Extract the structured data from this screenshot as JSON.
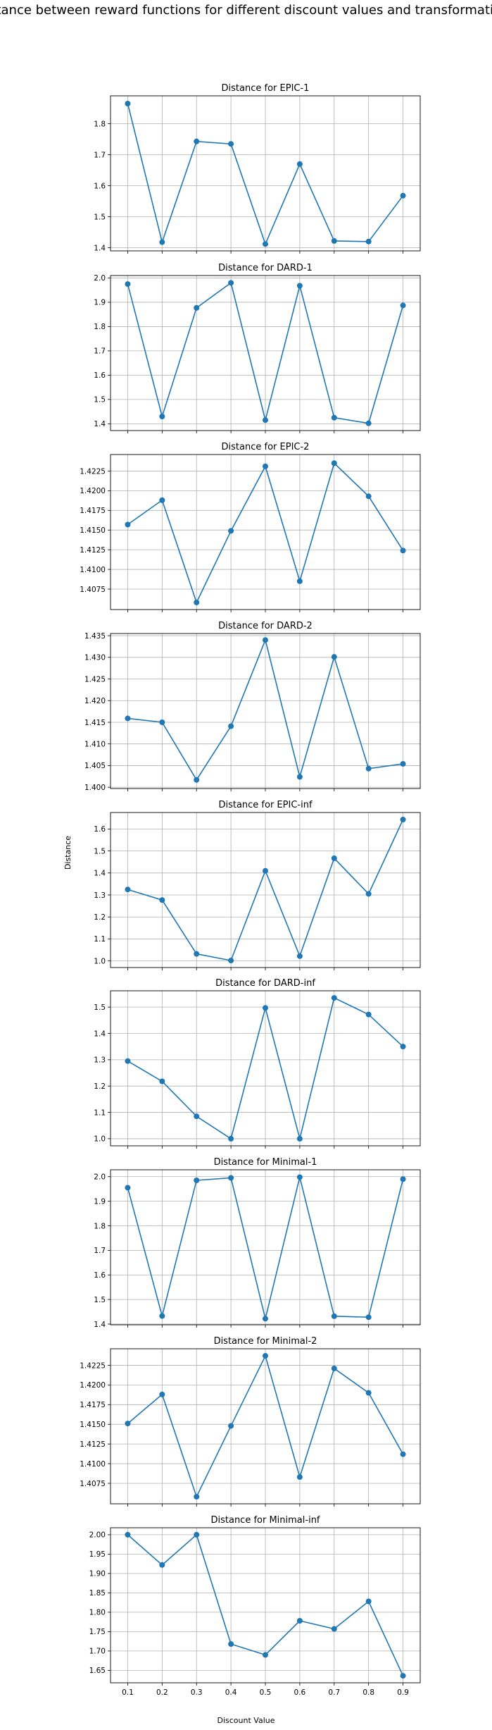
{
  "figure": {
    "suptitle": "Distance between reward functions for different discount values and transformations",
    "xlabel": "Discount Value",
    "ylabel": "Distance"
  },
  "colors": {
    "line": "#1f77b4",
    "grid": "#b0b0b0",
    "frame": "#000000"
  },
  "chart_data": [
    {
      "type": "line",
      "title": "Distance for EPIC-1",
      "x": [
        0.1,
        0.2,
        0.3,
        0.4,
        0.5,
        0.6,
        0.7,
        0.8,
        0.9
      ],
      "y": [
        1.865,
        1.418,
        1.743,
        1.735,
        1.412,
        1.67,
        1.422,
        1.42,
        1.568
      ],
      "ylim": [
        1.39,
        1.89
      ],
      "yticks": [
        1.4,
        1.5,
        1.6,
        1.7,
        1.8
      ],
      "ytick_labels": [
        "1.4",
        "1.5",
        "1.6",
        "1.7",
        "1.8"
      ],
      "xticks": [
        0.1,
        0.2,
        0.3,
        0.4,
        0.5,
        0.6,
        0.7,
        0.8,
        0.9
      ],
      "grid": true
    },
    {
      "type": "line",
      "title": "Distance for DARD-1",
      "x": [
        0.1,
        0.2,
        0.3,
        0.4,
        0.5,
        0.6,
        0.7,
        0.8,
        0.9
      ],
      "y": [
        1.975,
        1.43,
        1.877,
        1.98,
        1.415,
        1.968,
        1.425,
        1.402,
        1.887
      ],
      "ylim": [
        1.372,
        2.01
      ],
      "yticks": [
        1.4,
        1.5,
        1.6,
        1.7,
        1.8,
        1.9,
        2.0
      ],
      "ytick_labels": [
        "1.4",
        "1.5",
        "1.6",
        "1.7",
        "1.8",
        "1.9",
        "2.0"
      ],
      "xticks": [
        0.1,
        0.2,
        0.3,
        0.4,
        0.5,
        0.6,
        0.7,
        0.8,
        0.9
      ],
      "grid": true
    },
    {
      "type": "line",
      "title": "Distance for EPIC-2",
      "x": [
        0.1,
        0.2,
        0.3,
        0.4,
        0.5,
        0.6,
        0.7,
        0.8,
        0.9
      ],
      "y": [
        1.4157,
        1.4188,
        1.4058,
        1.4149,
        1.4231,
        1.4085,
        1.4235,
        1.4193,
        1.4124
      ],
      "ylim": [
        1.4049,
        1.4246
      ],
      "yticks": [
        1.4075,
        1.41,
        1.4125,
        1.415,
        1.4175,
        1.42,
        1.4225
      ],
      "ytick_labels": [
        "1.4075",
        "1.4100",
        "1.4125",
        "1.4150",
        "1.4175",
        "1.4200",
        "1.4225"
      ],
      "xticks": [
        0.1,
        0.2,
        0.3,
        0.4,
        0.5,
        0.6,
        0.7,
        0.8,
        0.9
      ],
      "grid": true
    },
    {
      "type": "line",
      "title": "Distance for DARD-2",
      "x": [
        0.1,
        0.2,
        0.3,
        0.4,
        0.5,
        0.6,
        0.7,
        0.8,
        0.9
      ],
      "y": [
        1.4159,
        1.415,
        1.4017,
        1.4141,
        1.434,
        1.4024,
        1.4301,
        1.4043,
        1.4054
      ],
      "ylim": [
        1.3997,
        1.4355
      ],
      "yticks": [
        1.4,
        1.405,
        1.41,
        1.415,
        1.42,
        1.425,
        1.43,
        1.435
      ],
      "ytick_labels": [
        "1.400",
        "1.405",
        "1.410",
        "1.415",
        "1.420",
        "1.425",
        "1.430",
        "1.435"
      ],
      "xticks": [
        0.1,
        0.2,
        0.3,
        0.4,
        0.5,
        0.6,
        0.7,
        0.8,
        0.9
      ],
      "grid": true
    },
    {
      "type": "line",
      "title": "Distance for EPIC-inf",
      "x": [
        0.1,
        0.2,
        0.3,
        0.4,
        0.5,
        0.6,
        0.7,
        0.8,
        0.9
      ],
      "y": [
        1.325,
        1.277,
        1.032,
        1.002,
        1.41,
        1.022,
        1.467,
        1.305,
        1.643
      ],
      "ylim": [
        0.97,
        1.675
      ],
      "yticks": [
        1.0,
        1.1,
        1.2,
        1.3,
        1.4,
        1.5,
        1.6
      ],
      "ytick_labels": [
        "1.0",
        "1.1",
        "1.2",
        "1.3",
        "1.4",
        "1.5",
        "1.6"
      ],
      "xticks": [
        0.1,
        0.2,
        0.3,
        0.4,
        0.5,
        0.6,
        0.7,
        0.8,
        0.9
      ],
      "grid": true
    },
    {
      "type": "line",
      "title": "Distance for DARD-inf",
      "x": [
        0.1,
        0.2,
        0.3,
        0.4,
        0.5,
        0.6,
        0.7,
        0.8,
        0.9
      ],
      "y": [
        1.295,
        1.218,
        1.085,
        1.0,
        1.497,
        1.0,
        1.535,
        1.472,
        1.35
      ],
      "ylim": [
        0.973,
        1.562
      ],
      "yticks": [
        1.0,
        1.1,
        1.2,
        1.3,
        1.4,
        1.5
      ],
      "ytick_labels": [
        "1.0",
        "1.1",
        "1.2",
        "1.3",
        "1.4",
        "1.5"
      ],
      "xticks": [
        0.1,
        0.2,
        0.3,
        0.4,
        0.5,
        0.6,
        0.7,
        0.8,
        0.9
      ],
      "grid": true
    },
    {
      "type": "line",
      "title": "Distance for Minimal-1",
      "x": [
        0.1,
        0.2,
        0.3,
        0.4,
        0.5,
        0.6,
        0.7,
        0.8,
        0.9
      ],
      "y": [
        1.955,
        1.433,
        1.985,
        1.995,
        1.422,
        1.998,
        1.432,
        1.428,
        1.99
      ],
      "ylim": [
        1.397,
        2.028
      ],
      "yticks": [
        1.4,
        1.5,
        1.6,
        1.7,
        1.8,
        1.9,
        2.0
      ],
      "ytick_labels": [
        "1.4",
        "1.5",
        "1.6",
        "1.7",
        "1.8",
        "1.9",
        "2.0"
      ],
      "xticks": [
        0.1,
        0.2,
        0.3,
        0.4,
        0.5,
        0.6,
        0.7,
        0.8,
        0.9
      ],
      "grid": true
    },
    {
      "type": "line",
      "title": "Distance for Minimal-2",
      "x": [
        0.1,
        0.2,
        0.3,
        0.4,
        0.5,
        0.6,
        0.7,
        0.8,
        0.9
      ],
      "y": [
        1.4151,
        1.4188,
        1.4058,
        1.4148,
        1.4237,
        1.4083,
        1.4221,
        1.419,
        1.4112
      ],
      "ylim": [
        1.4049,
        1.4246
      ],
      "yticks": [
        1.4075,
        1.41,
        1.4125,
        1.415,
        1.4175,
        1.42,
        1.4225
      ],
      "ytick_labels": [
        "1.4075",
        "1.4100",
        "1.4125",
        "1.4150",
        "1.4175",
        "1.4200",
        "1.4225"
      ],
      "xticks": [
        0.1,
        0.2,
        0.3,
        0.4,
        0.5,
        0.6,
        0.7,
        0.8,
        0.9
      ],
      "grid": true
    },
    {
      "type": "line",
      "title": "Distance for Minimal-inf",
      "x": [
        0.1,
        0.2,
        0.3,
        0.4,
        0.5,
        0.6,
        0.7,
        0.8,
        0.9
      ],
      "y": [
        2.0,
        1.922,
        2.0,
        1.718,
        1.69,
        1.778,
        1.757,
        1.828,
        1.636
      ],
      "ylim": [
        1.618,
        2.018
      ],
      "yticks": [
        1.65,
        1.7,
        1.75,
        1.8,
        1.85,
        1.9,
        1.95,
        2.0
      ],
      "ytick_labels": [
        "1.65",
        "1.70",
        "1.75",
        "1.80",
        "1.85",
        "1.90",
        "1.95",
        "2.00"
      ],
      "xticks": [
        0.1,
        0.2,
        0.3,
        0.4,
        0.5,
        0.6,
        0.7,
        0.8,
        0.9
      ],
      "xtick_labels": [
        "0.1",
        "0.2",
        "0.3",
        "0.4",
        "0.5",
        "0.6",
        "0.7",
        "0.8",
        "0.9"
      ],
      "grid": true
    }
  ]
}
